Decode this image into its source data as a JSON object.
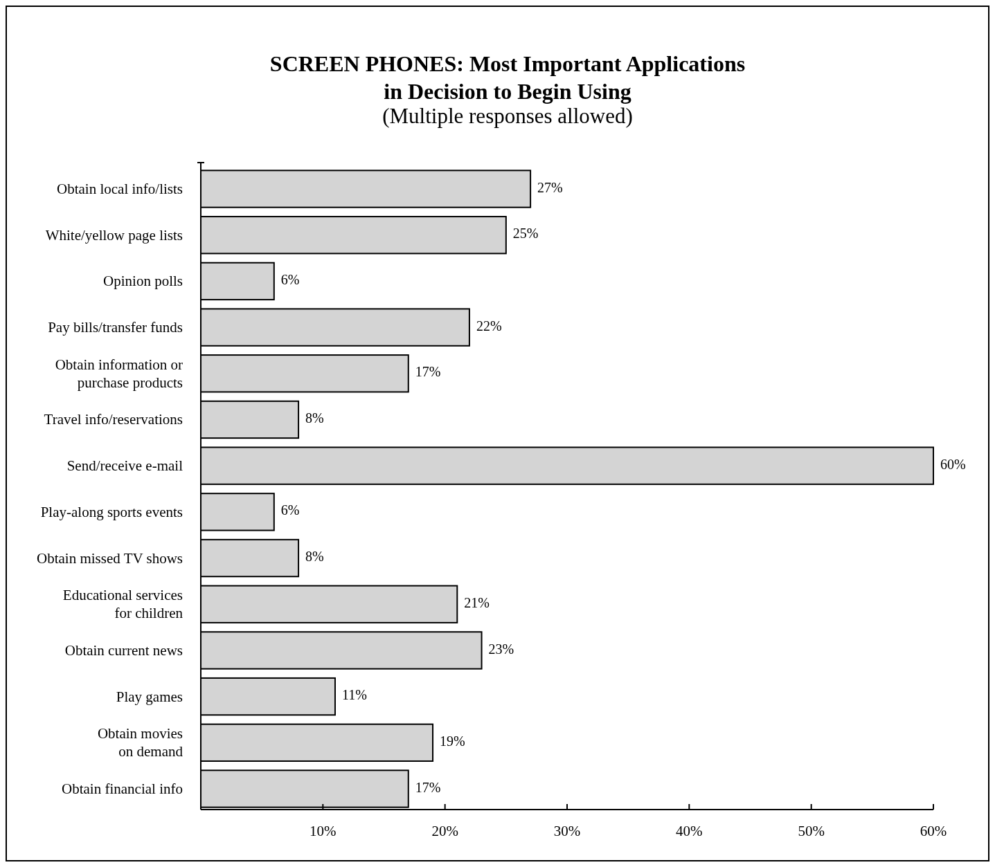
{
  "chart_data": {
    "type": "bar",
    "orientation": "horizontal",
    "title": "SCREEN PHONES: Most Important Applications\nin Decision to Begin Using",
    "subtitle": "(Multiple responses  allowed)",
    "categories": [
      "Obtain local info/lists",
      "White/yellow page lists",
      "Opinion polls",
      "Pay bills/transfer funds",
      "Obtain information or\npurchase products",
      "Travel info/reservations",
      "Send/receive e-mail",
      "Play-along sports events",
      "Obtain missed TV shows",
      "Educational services\nfor children",
      "Obtain current news",
      "Play games",
      "Obtain movies\non demand",
      "Obtain financial info"
    ],
    "values": [
      27,
      25,
      6,
      22,
      17,
      8,
      60,
      6,
      8,
      21,
      23,
      11,
      19,
      17
    ],
    "value_labels": [
      "27%",
      "25%",
      "6%",
      "22%",
      "17%",
      "8%",
      "60%",
      "6%",
      "8%",
      "21%",
      "23%",
      "11%",
      "19%",
      "17%"
    ],
    "color": "#d4d4d4",
    "xlim": [
      0,
      60
    ],
    "xticks": [
      {
        "value": 0,
        "label": null
      },
      {
        "value": 10,
        "label": "10%"
      },
      {
        "value": 20,
        "label": "20%"
      },
      {
        "value": 30,
        "label": "30%"
      },
      {
        "value": 40,
        "label": "40%"
      },
      {
        "value": 50,
        "label": "50%"
      },
      {
        "value": 60,
        "label": "60%"
      }
    ],
    "grid": false
  }
}
